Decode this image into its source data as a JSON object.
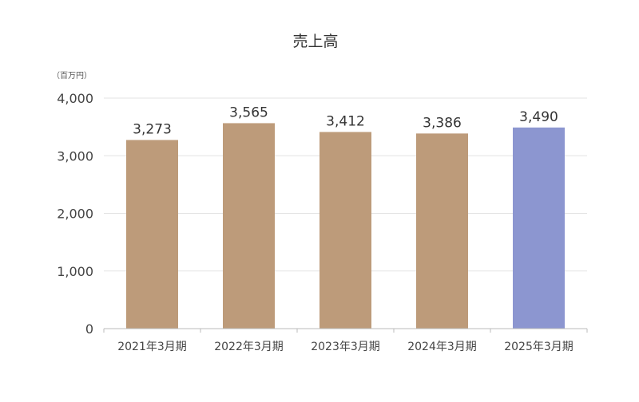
{
  "chart_data": {
    "type": "bar",
    "title": "売上高",
    "unit_label": "（百万円）",
    "categories": [
      "2021年3月期",
      "2022年3月期",
      "2023年3月期",
      "2024年3月期",
      "2025年3月期"
    ],
    "values": [
      3273,
      3565,
      3412,
      3386,
      3490
    ],
    "value_labels": [
      "3,273",
      "3,565",
      "3,412",
      "3,386",
      "3,490"
    ],
    "yticks": [
      0,
      1000,
      2000,
      3000,
      4000
    ],
    "ytick_labels": [
      "0",
      "1,000",
      "2,000",
      "3,000",
      "4,000"
    ],
    "ylim": [
      0,
      4000
    ],
    "grid": true,
    "colors": {
      "bar": "#bd9b7a",
      "highlight_bar": "#8c96d0",
      "grid": "#e3e3e3",
      "axis": "#bbbbbb",
      "text": "#444444"
    },
    "highlight_index": 4
  }
}
